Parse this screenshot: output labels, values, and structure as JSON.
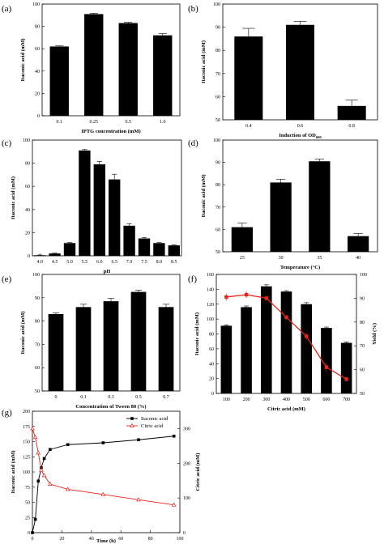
{
  "chart_data": [
    {
      "panel": "(a)",
      "type": "bar",
      "categories": [
        "0.1",
        "0.25",
        "0.5",
        "1.0"
      ],
      "values": [
        62,
        91,
        83,
        72
      ],
      "errors": [
        0.6,
        0.8,
        0.6,
        1.5
      ],
      "xlabel": "IPTG concentration (mM)",
      "ylabel": "Itaconic acid (mM)",
      "ylim": [
        0,
        100
      ],
      "yticks": [
        "0",
        "20",
        "40",
        "60",
        "80",
        "100"
      ],
      "bar_color": "#000000"
    },
    {
      "panel": "(b)",
      "type": "bar",
      "categories": [
        "0.4",
        "0.6",
        "0.8"
      ],
      "values": [
        86,
        91,
        56
      ],
      "errors": [
        3.5,
        1.5,
        2.5
      ],
      "xlabel": "Induction of OD",
      "xlabel_sub": "600",
      "ylabel": "Itaconic acid (mM)",
      "ylim": [
        50,
        100
      ],
      "yticks": [
        "50",
        "60",
        "70",
        "80",
        "90",
        "100"
      ],
      "bar_color": "#000000"
    },
    {
      "panel": "(c)",
      "type": "bar",
      "categories": [
        "4.0",
        "4.5",
        "5.0",
        "5.5",
        "6.0",
        "6.5",
        "7.0",
        "7.5",
        "8.0",
        "8.5"
      ],
      "values": [
        0.5,
        2,
        11,
        91,
        79,
        66,
        26,
        15,
        11,
        9
      ],
      "errors": [
        0.2,
        0.3,
        0.5,
        0.8,
        2.5,
        4.5,
        1.8,
        0.8,
        0.5,
        0.5
      ],
      "xlabel": "pH",
      "ylabel": "Itaconic acid (mM)",
      "ylim": [
        0,
        100
      ],
      "yticks": [
        "0",
        "20",
        "40",
        "60",
        "80",
        "100"
      ],
      "bar_color": "#000000"
    },
    {
      "panel": "(d)",
      "type": "bar",
      "categories": [
        "25",
        "30",
        "35",
        "40"
      ],
      "values": [
        61,
        81,
        90.5,
        57
      ],
      "errors": [
        1.8,
        1.5,
        1.0,
        1.2
      ],
      "xlabel": "Temperature (°C)",
      "ylabel": "Itaconic acid (mM)",
      "ylim": [
        50,
        100
      ],
      "yticks": [
        "50",
        "60",
        "70",
        "80",
        "90",
        "100"
      ],
      "bar_color": "#000000"
    },
    {
      "panel": "(e)",
      "type": "bar",
      "categories": [
        "0",
        "0.1",
        "0.3",
        "0.5",
        "0.7"
      ],
      "values": [
        83,
        86,
        88.5,
        92.5,
        86
      ],
      "errors": [
        0.5,
        1.2,
        1.2,
        0.8,
        1.2
      ],
      "xlabel": "Concentration of Tween 80 (%)",
      "ylabel": "Itaconic acid (mM)",
      "ylim": [
        50,
        100
      ],
      "yticks": [
        "50",
        "60",
        "70",
        "80",
        "90",
        "100"
      ],
      "bar_color": "#000000"
    },
    {
      "panel": "(f)",
      "type": "bar",
      "categories": [
        "100",
        "200",
        "300",
        "400",
        "500",
        "600",
        "700"
      ],
      "values": [
        91,
        116,
        144,
        137,
        120,
        88,
        68
      ],
      "errors": [
        1.2,
        1.5,
        2.0,
        1.2,
        2.0,
        1.2,
        1.2
      ],
      "line_series": {
        "values": [
          90.5,
          91.5,
          90,
          82,
          74,
          61,
          56
        ],
        "errors": [
          1.5,
          1.5,
          1.0,
          1.0,
          1.5,
          2.0,
          1.0
        ],
        "color": "#e8241c"
      },
      "xlabel": "Citric acid (mM)",
      "ylabel": "Itaconic acid (mM)",
      "ylabel_right": "Yield (%)",
      "ylim": [
        0,
        160
      ],
      "ylim_right": [
        50,
        100
      ],
      "yticks": [
        "0",
        "20",
        "40",
        "60",
        "80",
        "100",
        "120",
        "140",
        "160"
      ],
      "yticks_right": [
        "50",
        "60",
        "70",
        "80",
        "90",
        "100"
      ],
      "bar_color": "#000000"
    },
    {
      "panel": "(g)",
      "type": "line",
      "series": [
        {
          "name": "Itaconic acid",
          "axis": "left",
          "x": [
            0,
            2,
            4,
            6,
            8,
            12,
            24,
            48,
            72,
            96
          ],
          "values": [
            0,
            22,
            85,
            107,
            122,
            137,
            145,
            148,
            153,
            159
          ],
          "color": "#000000",
          "marker": "square"
        },
        {
          "name": "Citric acid",
          "axis": "right",
          "x": [
            0,
            2,
            4,
            6,
            8,
            12,
            24,
            48,
            72,
            96
          ],
          "values": [
            300,
            275,
            230,
            180,
            165,
            140,
            125,
            110,
            95,
            80
          ],
          "color": "#e8241c",
          "marker": "triangle"
        }
      ],
      "xlabel": "Time (h)",
      "ylabel": "Itaconic acid (mM)",
      "ylabel_right": "Citric acid (mM)",
      "xlim": [
        0,
        100
      ],
      "ylim": [
        0,
        200
      ],
      "ylim_right": [
        0,
        350
      ],
      "xticks": [
        "0",
        "20",
        "40",
        "60",
        "80",
        "100"
      ],
      "yticks": [
        "0",
        "25",
        "50",
        "75",
        "100",
        "125",
        "150",
        "175",
        "200"
      ],
      "yticks_right": [
        "0",
        "100",
        "200",
        "300"
      ],
      "legend": "top-right"
    }
  ]
}
